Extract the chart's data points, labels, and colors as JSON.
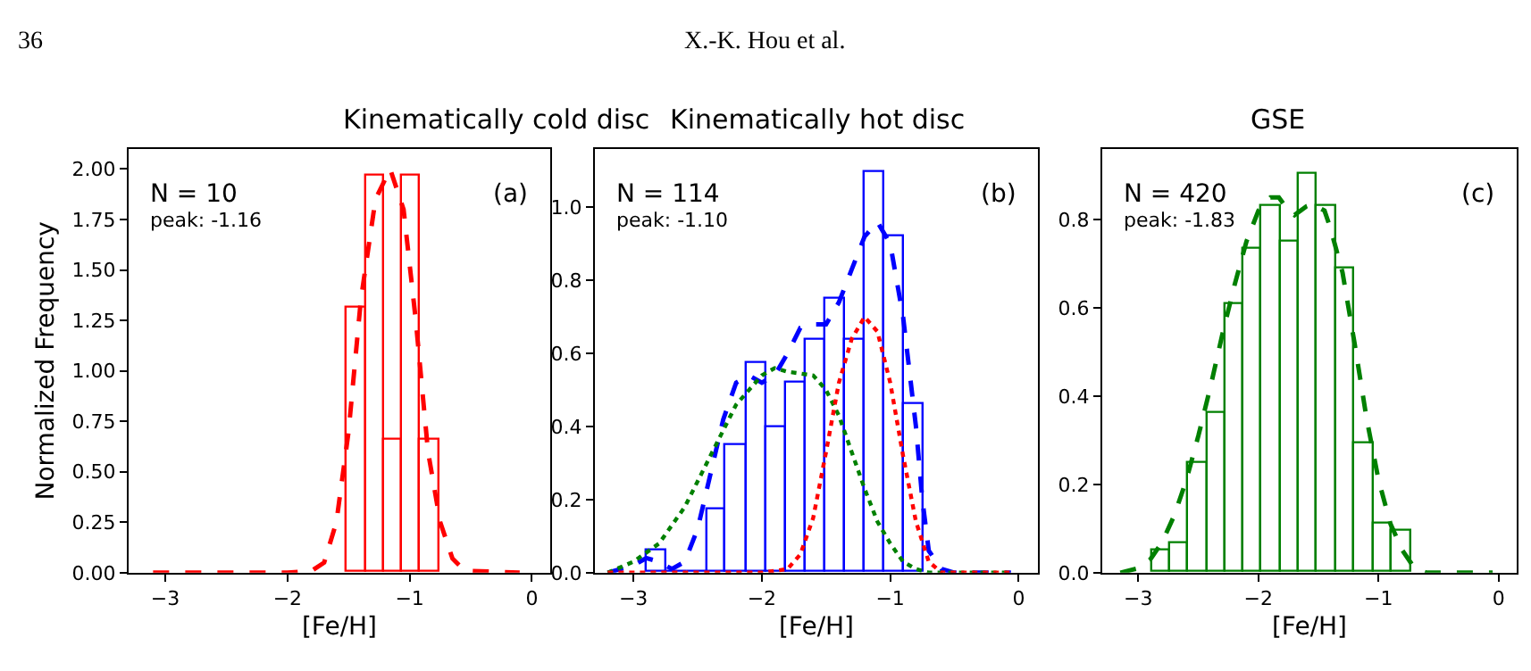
{
  "chart_data": [
    {
      "type": "histogram",
      "title": "Kinematically cold disc",
      "xlabel": "[Fe/H]",
      "ylabel": "Normalized Frequency",
      "annotations": [
        "36",
        "X.-K. Hou et al.",
        "N = 10",
        "peak: -1.16",
        "(a)"
      ],
      "bins": [
        -1.52,
        -1.36,
        -1.21,
        -1.06,
        -0.91,
        -0.76
      ],
      "values": [
        1.31,
        1.97,
        0.66,
        1.97,
        0.66
      ],
      "color": "#ff0000",
      "series": [
        {
          "type": "line",
          "color": "#ff0000",
          "line_style": "dashed",
          "x": [
            -3.1,
            -2.5,
            -2.0,
            -1.8,
            -1.7,
            -1.6,
            -1.5,
            -1.4,
            -1.28,
            -1.16,
            -1.05,
            -0.95,
            -0.85,
            -0.75,
            -0.65,
            -0.55,
            -0.1
          ],
          "values": [
            0,
            0,
            0,
            0.01,
            0.05,
            0.25,
            0.7,
            1.35,
            1.85,
            2.0,
            1.8,
            1.25,
            0.6,
            0.25,
            0.07,
            0.01,
            0
          ]
        }
      ],
      "xlim": [
        -3.3,
        0.15
      ],
      "ylim": [
        0,
        2.1
      ],
      "xticks": [
        {
          "value": -3,
          "label": "−3"
        },
        {
          "value": -2,
          "label": "−2"
        },
        {
          "value": -1,
          "label": "−1"
        },
        0
      ],
      "yticks": [
        {
          "value": 0,
          "label": "0.00"
        },
        0.25,
        {
          "value": 0.5,
          "label": "0.50"
        },
        0.75,
        {
          "value": 1,
          "label": "1.00"
        },
        1.25,
        {
          "value": 1.5,
          "label": "1.50"
        },
        1.75,
        {
          "value": 2,
          "label": "2.00"
        }
      ]
    },
    {
      "type": "histogram",
      "title": "Kinematically hot disc",
      "xlabel": "[Fe/H]",
      "annotations": [
        "N = 114",
        "peak: -1.10",
        "(b)"
      ],
      "bins": [
        -2.89,
        -2.74,
        -2.58,
        -2.43,
        -2.28,
        -2.12,
        -1.97,
        -1.81,
        -1.66,
        -1.51,
        -1.35,
        -1.2,
        -1.05,
        -0.89,
        -0.74
      ],
      "values": [
        0.06,
        0,
        0,
        0.175,
        0.35,
        0.575,
        0.4,
        0.52,
        0.635,
        0.75,
        0.635,
        1.095,
        0.92,
        0.46
      ],
      "color": "#0000ff",
      "series": [
        {
          "type": "line",
          "color": "#0000ff",
          "line_style": "dashed",
          "x": [
            -3.2,
            -3.0,
            -2.9,
            -2.8,
            -2.7,
            -2.6,
            -2.5,
            -2.4,
            -2.3,
            -2.2,
            -2.1,
            -2.0,
            -1.9,
            -1.8,
            -1.7,
            -1.6,
            -1.5,
            -1.4,
            -1.3,
            -1.2,
            -1.1,
            -1.0,
            -0.9,
            -0.8,
            -0.75,
            -0.7,
            -0.6,
            -0.5,
            -0.06
          ],
          "values": [
            0,
            0.02,
            0.04,
            0.03,
            0.01,
            0.03,
            0.12,
            0.27,
            0.42,
            0.52,
            0.54,
            0.52,
            0.54,
            0.6,
            0.67,
            0.68,
            0.68,
            0.74,
            0.83,
            0.92,
            0.96,
            0.9,
            0.7,
            0.4,
            0.2,
            0.06,
            0.01,
            0,
            0
          ]
        },
        {
          "type": "line",
          "color": "#008000",
          "line_style": "dotted",
          "x": [
            -3.2,
            -3.0,
            -2.8,
            -2.6,
            -2.4,
            -2.2,
            -2.0,
            -1.9,
            -1.8,
            -1.6,
            -1.5,
            -1.4,
            -1.3,
            -1.2,
            -1.1,
            -1.0,
            -0.9,
            -0.8,
            -0.7,
            -0.06
          ],
          "values": [
            0,
            0.03,
            0.08,
            0.18,
            0.32,
            0.46,
            0.54,
            0.56,
            0.55,
            0.54,
            0.5,
            0.43,
            0.33,
            0.23,
            0.14,
            0.08,
            0.03,
            0.01,
            0,
            0
          ]
        },
        {
          "type": "line",
          "color": "#ff0000",
          "line_style": "dotted",
          "x": [
            -3.2,
            -2.0,
            -1.8,
            -1.7,
            -1.6,
            -1.5,
            -1.4,
            -1.3,
            -1.2,
            -1.1,
            -1.0,
            -0.9,
            -0.8,
            -0.7,
            -0.6,
            -0.06
          ],
          "values": [
            0,
            0,
            0.01,
            0.05,
            0.15,
            0.33,
            0.52,
            0.64,
            0.7,
            0.66,
            0.52,
            0.32,
            0.14,
            0.03,
            0,
            0
          ]
        }
      ],
      "xlim": [
        -3.3,
        0.15
      ],
      "ylim": [
        0,
        1.16
      ],
      "xticks": [
        {
          "value": -3,
          "label": "−3"
        },
        {
          "value": -2,
          "label": "−2"
        },
        {
          "value": -1,
          "label": "−1"
        },
        0
      ],
      "yticks": [
        {
          "value": 0,
          "label": "0.0"
        },
        0.2,
        0.4,
        0.6,
        0.8,
        {
          "value": 1,
          "label": "1.0"
        }
      ]
    },
    {
      "type": "histogram",
      "title": "GSE",
      "xlabel": "[Fe/H]",
      "annotations": [
        "N = 420",
        "peak: -1.83",
        "(c)"
      ],
      "bins": [
        -2.89,
        -2.74,
        -2.58,
        -2.43,
        -2.28,
        -2.12,
        -1.97,
        -1.81,
        -1.66,
        -1.51,
        -1.35,
        -1.2,
        -1.04,
        -0.89,
        -0.73
      ],
      "values": [
        0.05,
        0.065,
        0.25,
        0.36,
        0.61,
        0.735,
        0.83,
        0.75,
        0.905,
        0.83,
        0.69,
        0.295,
        0.11,
        0.095
      ],
      "color": "#008000",
      "series": [
        {
          "type": "line",
          "color": "#008000",
          "line_style": "dashed",
          "x": [
            -3.15,
            -3.0,
            -2.9,
            -2.8,
            -2.7,
            -2.6,
            -2.5,
            -2.4,
            -2.3,
            -2.2,
            -2.1,
            -2.0,
            -1.9,
            -1.83,
            -1.75,
            -1.7,
            -1.6,
            -1.55,
            -1.45,
            -1.4,
            -1.3,
            -1.2,
            -1.1,
            -1.0,
            -0.9,
            -0.8,
            -0.7,
            -0.6,
            -0.05
          ],
          "values": [
            0,
            0.01,
            0.03,
            0.07,
            0.13,
            0.21,
            0.31,
            0.42,
            0.54,
            0.65,
            0.75,
            0.82,
            0.85,
            0.85,
            0.82,
            0.81,
            0.83,
            0.835,
            0.82,
            0.78,
            0.68,
            0.52,
            0.35,
            0.21,
            0.11,
            0.05,
            0.01,
            0,
            0
          ]
        }
      ],
      "xlim": [
        -3.3,
        0.15
      ],
      "ylim": [
        0,
        0.96
      ],
      "xticks": [
        {
          "value": -3,
          "label": "−3"
        },
        {
          "value": -2,
          "label": "−2"
        },
        {
          "value": -1,
          "label": "−1"
        },
        0
      ],
      "yticks": [
        {
          "value": 0,
          "label": "0.0"
        },
        0.2,
        0.4,
        0.6,
        0.8
      ]
    }
  ]
}
